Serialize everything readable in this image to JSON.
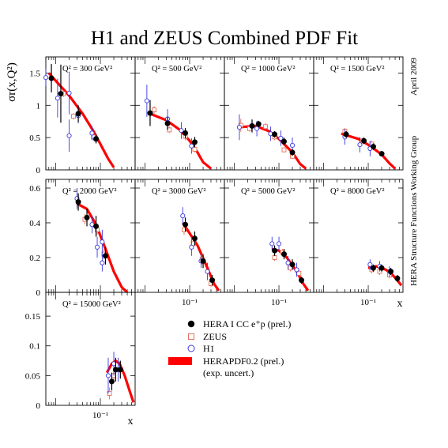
{
  "title": "H1 and ZEUS Combined PDF Fit",
  "side_text": {
    "date": "April 2009",
    "group": "HERA Structure Functions Working Group"
  },
  "ylabel": "σr(x,Q²)",
  "xlabel": "x",
  "legend": {
    "hera": "HERA I CC e⁺p (prel.)",
    "zeus": "ZEUS",
    "h1": "H1",
    "fit": "HERAPDF0.2 (prel.)",
    "fit_note": "(exp. uncert.)"
  },
  "colors": {
    "hera": "#000000",
    "zeus": "#e8705a",
    "h1": "#3a3ae0",
    "fit": "#ff0000",
    "frame": "#000000"
  },
  "chart_data": {
    "type": "scatter",
    "x_scale": "log",
    "xlim": [
      0.006,
      0.6
    ],
    "x_tick_label": "10⁻¹",
    "panels": [
      {
        "label": "Q² = 300 GeV²",
        "ylim": [
          0,
          1.75
        ],
        "yticks": [
          0.5,
          1,
          1.5
        ],
        "ytick_labels": [
          "0.5",
          "1",
          "1.5"
        ],
        "hera": [
          [
            0.008,
            1.42,
            0.22
          ],
          [
            0.013,
            1.18,
            0.45
          ],
          [
            0.032,
            0.87,
            0.13
          ],
          [
            0.08,
            0.48,
            0.07
          ]
        ],
        "zeus": [
          [
            0.015,
            1.18,
            0.05
          ],
          [
            0.025,
            0.83,
            0.05
          ],
          [
            0.07,
            0.51,
            0.06
          ]
        ],
        "h1": [
          [
            0.006,
            1.43,
            0.13
          ],
          [
            0.011,
            1.11,
            0.3
          ],
          [
            0.02,
            1.19,
            0.33
          ],
          [
            0.02,
            0.53,
            0.25
          ],
          [
            0.032,
            0.84,
            0.12
          ],
          [
            0.065,
            0.57,
            0.11
          ]
        ],
        "fit": [
          [
            0.007,
            1.5
          ],
          [
            0.01,
            1.38
          ],
          [
            0.02,
            1.15
          ],
          [
            0.04,
            0.87
          ],
          [
            0.07,
            0.6
          ],
          [
            0.1,
            0.4
          ],
          [
            0.15,
            0.17
          ],
          [
            0.2,
            0.04
          ]
        ]
      },
      {
        "label": "Q² = 500 GeV²",
        "ylim": [
          0,
          1.75
        ],
        "yticks": [
          0.5,
          1,
          1.5
        ],
        "ytick_labels": [
          "",
          "",
          ""
        ],
        "hera": [
          [
            0.013,
            0.88,
            0.2
          ],
          [
            0.032,
            0.72,
            0.1
          ],
          [
            0.08,
            0.57,
            0.08
          ],
          [
            0.13,
            0.43,
            0.08
          ]
        ],
        "zeus": [
          [
            0.016,
            0.93,
            0.06
          ],
          [
            0.035,
            0.62,
            0.05
          ],
          [
            0.08,
            0.52,
            0.06
          ],
          [
            0.13,
            0.32,
            0.05
          ]
        ],
        "h1": [
          [
            0.011,
            1.07,
            0.25
          ],
          [
            0.032,
            0.79,
            0.15
          ],
          [
            0.065,
            0.61,
            0.13
          ],
          [
            0.11,
            0.37,
            0.12
          ]
        ],
        "fit": [
          [
            0.012,
            0.88
          ],
          [
            0.03,
            0.77
          ],
          [
            0.06,
            0.62
          ],
          [
            0.1,
            0.45
          ],
          [
            0.15,
            0.27
          ],
          [
            0.2,
            0.12
          ],
          [
            0.3,
            0.02
          ]
        ]
      },
      {
        "label": "Q² = 1000 GeV²",
        "ylim": [
          0,
          1.75
        ],
        "yticks": [
          0.5,
          1,
          1.5
        ],
        "ytick_labels": [
          "",
          "",
          ""
        ],
        "hera": [
          [
            0.025,
            0.68,
            0.1
          ],
          [
            0.035,
            0.71,
            0.05
          ],
          [
            0.08,
            0.55,
            0.05
          ],
          [
            0.13,
            0.44,
            0.06
          ],
          [
            0.2,
            0.27,
            0.05
          ]
        ],
        "zeus": [
          [
            0.014,
            0.69,
            0.1
          ],
          [
            0.022,
            0.64,
            0.05
          ],
          [
            0.05,
            0.67,
            0.05
          ],
          [
            0.08,
            0.51,
            0.05
          ],
          [
            0.13,
            0.31,
            0.04
          ],
          [
            0.2,
            0.21,
            0.04
          ]
        ],
        "h1": [
          [
            0.013,
            0.66,
            0.2
          ],
          [
            0.032,
            0.64,
            0.12
          ],
          [
            0.065,
            0.56,
            0.11
          ],
          [
            0.11,
            0.49,
            0.12
          ],
          [
            0.2,
            0.38,
            0.12
          ]
        ],
        "fit": [
          [
            0.012,
            0.66
          ],
          [
            0.03,
            0.68
          ],
          [
            0.06,
            0.6
          ],
          [
            0.1,
            0.48
          ],
          [
            0.2,
            0.27
          ],
          [
            0.3,
            0.09
          ],
          [
            0.4,
            0.02
          ]
        ]
      },
      {
        "label": "Q² = 1500 GeV²",
        "ylim": [
          0,
          1.75
        ],
        "yticks": [
          0.5,
          1,
          1.5
        ],
        "ytick_labels": [
          "",
          "",
          ""
        ],
        "hera": [
          [
            0.032,
            0.55,
            0.05
          ],
          [
            0.08,
            0.45,
            0.05
          ],
          [
            0.13,
            0.36,
            0.05
          ],
          [
            0.2,
            0.25,
            0.04
          ]
        ],
        "zeus": [
          [
            0.03,
            0.6,
            0.05
          ],
          [
            0.075,
            0.45,
            0.05
          ],
          [
            0.12,
            0.4,
            0.05
          ]
        ],
        "h1": [
          [
            0.03,
            0.51,
            0.12
          ],
          [
            0.065,
            0.39,
            0.12
          ],
          [
            0.11,
            0.33,
            0.12
          ]
        ],
        "fit": [
          [
            0.025,
            0.56
          ],
          [
            0.06,
            0.48
          ],
          [
            0.1,
            0.39
          ],
          [
            0.2,
            0.24
          ],
          [
            0.3,
            0.1
          ],
          [
            0.4,
            0.02
          ]
        ]
      },
      {
        "label": "Q² = 2000 GeV²",
        "ylim": [
          0,
          0.65
        ],
        "yticks": [
          0.2,
          0.4,
          0.6
        ],
        "ytick_labels": [
          "0.2",
          "0.4",
          "0.6"
        ],
        "hera": [
          [
            0.032,
            0.52,
            0.05
          ],
          [
            0.05,
            0.43,
            0.05
          ],
          [
            0.08,
            0.38,
            0.06
          ],
          [
            0.13,
            0.21,
            0.05
          ]
        ],
        "zeus": [
          [
            0.045,
            0.42,
            0.03
          ],
          [
            0.085,
            0.36,
            0.03
          ],
          [
            0.12,
            0.22,
            0.03
          ]
        ],
        "h1": [
          [
            0.03,
            0.54,
            0.06
          ],
          [
            0.065,
            0.39,
            0.05
          ],
          [
            0.085,
            0.26,
            0.06
          ],
          [
            0.11,
            0.29,
            0.07
          ],
          [
            0.11,
            0.17,
            0.05
          ]
        ],
        "fit": [
          [
            0.03,
            0.51
          ],
          [
            0.05,
            0.48
          ],
          [
            0.08,
            0.39
          ],
          [
            0.13,
            0.25
          ],
          [
            0.2,
            0.12
          ],
          [
            0.3,
            0.03
          ],
          [
            0.4,
            0.0
          ]
        ]
      },
      {
        "label": "Q² = 3000 GeV²",
        "ylim": [
          0,
          0.65
        ],
        "yticks": [
          0.2,
          0.4,
          0.6
        ],
        "ytick_labels": [
          "",
          "",
          ""
        ],
        "hera": [
          [
            0.08,
            0.39,
            0.04
          ],
          [
            0.13,
            0.31,
            0.04
          ],
          [
            0.2,
            0.18,
            0.04
          ],
          [
            0.32,
            0.07,
            0.03
          ]
        ],
        "zeus": [
          [
            0.075,
            0.36,
            0.03
          ],
          [
            0.12,
            0.28,
            0.03
          ],
          [
            0.19,
            0.19,
            0.03
          ],
          [
            0.3,
            0.05,
            0.02
          ]
        ],
        "h1": [
          [
            0.07,
            0.44,
            0.05
          ],
          [
            0.11,
            0.26,
            0.05
          ],
          [
            0.18,
            0.18,
            0.04
          ],
          [
            0.25,
            0.12,
            0.05
          ]
        ],
        "fit": [
          [
            0.07,
            0.4
          ],
          [
            0.1,
            0.34
          ],
          [
            0.15,
            0.27
          ],
          [
            0.25,
            0.14
          ],
          [
            0.35,
            0.05
          ],
          [
            0.45,
            0.01
          ]
        ]
      },
      {
        "label": "Q² = 5000 GeV²",
        "ylim": [
          0,
          0.65
        ],
        "yticks": [
          0.2,
          0.4,
          0.6
        ],
        "ytick_labels": [
          "",
          "",
          ""
        ],
        "hera": [
          [
            0.08,
            0.24,
            0.03
          ],
          [
            0.13,
            0.22,
            0.03
          ],
          [
            0.2,
            0.16,
            0.03
          ],
          [
            0.32,
            0.07,
            0.02
          ]
        ],
        "zeus": [
          [
            0.08,
            0.2,
            0.02
          ],
          [
            0.12,
            0.23,
            0.02
          ],
          [
            0.18,
            0.14,
            0.02
          ],
          [
            0.28,
            0.11,
            0.02
          ]
        ],
        "h1": [
          [
            0.07,
            0.28,
            0.04
          ],
          [
            0.1,
            0.28,
            0.04
          ],
          [
            0.16,
            0.17,
            0.04
          ],
          [
            0.25,
            0.13,
            0.04
          ]
        ],
        "fit": [
          [
            0.07,
            0.25
          ],
          [
            0.1,
            0.24
          ],
          [
            0.15,
            0.2
          ],
          [
            0.25,
            0.12
          ],
          [
            0.35,
            0.05
          ],
          [
            0.45,
            0.01
          ]
        ]
      },
      {
        "label": "Q² = 8000 GeV²",
        "ylim": [
          0,
          0.65
        ],
        "yticks": [
          0.2,
          0.4,
          0.6
        ],
        "ytick_labels": [
          "",
          "",
          ""
        ],
        "hera": [
          [
            0.13,
            0.14,
            0.02
          ],
          [
            0.2,
            0.14,
            0.02
          ],
          [
            0.32,
            0.12,
            0.02
          ],
          [
            0.45,
            0.08,
            0.02
          ]
        ],
        "zeus": [
          [
            0.12,
            0.13,
            0.02
          ],
          [
            0.18,
            0.12,
            0.02
          ],
          [
            0.3,
            0.1,
            0.02
          ]
        ],
        "h1": [
          [
            0.11,
            0.16,
            0.03
          ],
          [
            0.18,
            0.15,
            0.03
          ],
          [
            0.3,
            0.12,
            0.03
          ]
        ],
        "fit": [
          [
            0.1,
            0.14
          ],
          [
            0.15,
            0.15
          ],
          [
            0.25,
            0.13
          ],
          [
            0.35,
            0.1
          ],
          [
            0.45,
            0.07
          ],
          [
            0.55,
            0.04
          ]
        ]
      },
      {
        "label": "Q² = 15000 GeV²",
        "ylim": [
          0,
          0.19
        ],
        "yticks": [
          0.05,
          0.1,
          0.15
        ],
        "ytick_labels": [
          "0.05",
          "0.1",
          "0.15"
        ],
        "hera": [
          [
            0.18,
            0.04,
            0.015
          ],
          [
            0.22,
            0.06,
            0.02
          ],
          [
            0.28,
            0.06,
            0.015
          ]
        ],
        "zeus": [
          [
            0.16,
            0.02,
            0.01
          ],
          [
            0.2,
            0.05,
            0.01
          ]
        ],
        "h1": [
          [
            0.15,
            0.05,
            0.03
          ],
          [
            0.2,
            0.07,
            0.02
          ],
          [
            0.25,
            0.06,
            0.02
          ]
        ],
        "fit": [
          [
            0.14,
            0.055
          ],
          [
            0.18,
            0.07
          ],
          [
            0.22,
            0.075
          ],
          [
            0.27,
            0.07
          ],
          [
            0.35,
            0.05
          ],
          [
            0.45,
            0.025
          ],
          [
            0.55,
            0.005
          ]
        ]
      }
    ]
  }
}
